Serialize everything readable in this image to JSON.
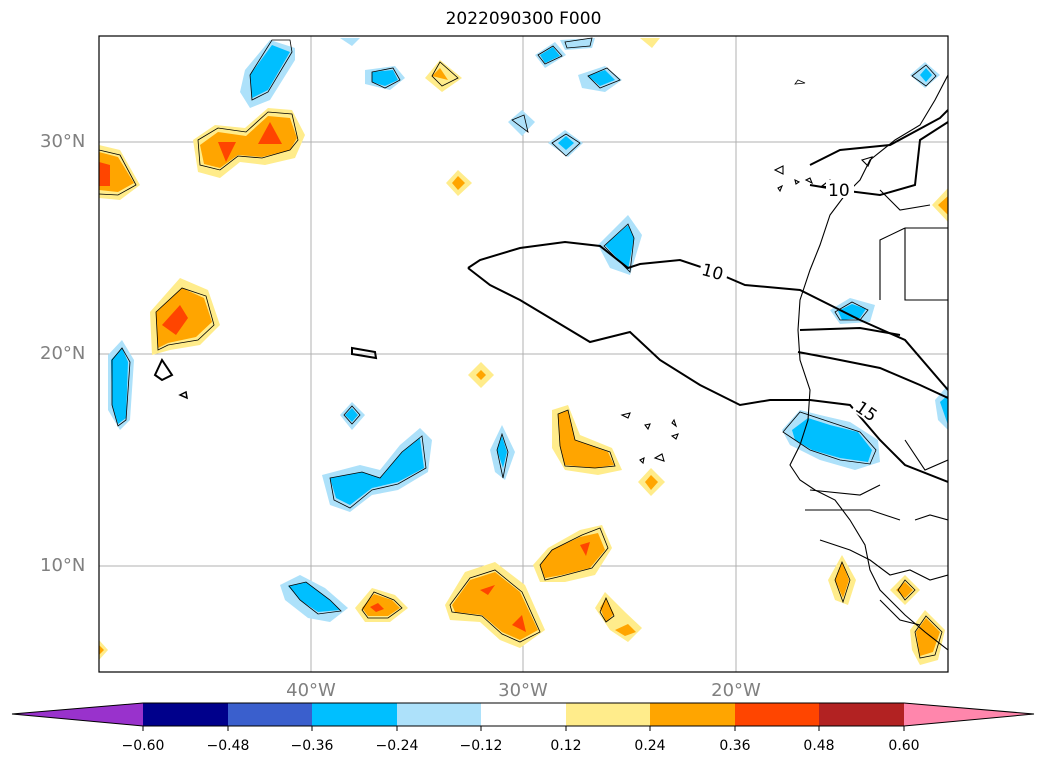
{
  "title": "2022090300 F000",
  "map": {
    "region": "Eastern tropical North Atlantic and West Africa",
    "latitude_labels": [
      "30°N",
      "20°N",
      "10°N"
    ],
    "longitude_labels": [
      "40°W",
      "30°W",
      "20°W"
    ],
    "contour_labels": [
      "10",
      "10",
      "15"
    ],
    "grid": true
  },
  "colorbar": {
    "ticks": [
      "−0.60",
      "−0.48",
      "−0.36",
      "−0.24",
      "−0.12",
      "0.12",
      "0.24",
      "0.36",
      "0.48",
      "0.60"
    ],
    "colors": [
      "#9932CC",
      "#00008B",
      "#3A5FCD",
      "#00BFFF",
      "#ADE1FA",
      "#FFFFFF",
      "#FFEC8B",
      "#FFA500",
      "#FF4500",
      "#B22222",
      "#FF86AC"
    ],
    "extend": "both"
  },
  "fill_colors": {
    "neg_light": "#ADE1FA",
    "neg_mid": "#00BFFF",
    "pos_light": "#FFEC8B",
    "pos_mid": "#FFA500",
    "pos_strong": "#FF4500"
  }
}
